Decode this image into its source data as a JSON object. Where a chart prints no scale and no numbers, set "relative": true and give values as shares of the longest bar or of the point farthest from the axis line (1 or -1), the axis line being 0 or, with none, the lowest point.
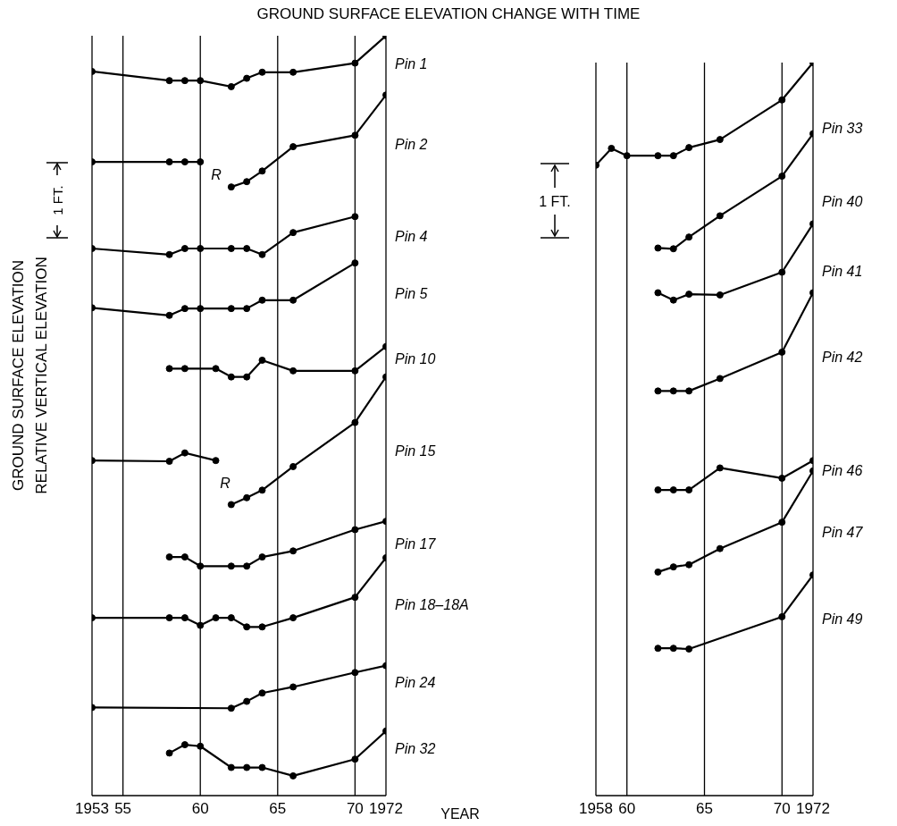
{
  "chart_data": [
    {
      "type": "line",
      "title": "GROUND SURFACE ELEVATION CHANGE WITH TIME",
      "xlabel": "YEAR",
      "ylabel": "GROUND SURFACE ELEVATION\nRELATIVE VERTICAL ELEVATION",
      "relative": true,
      "grid": "x",
      "marker": "circle",
      "line_style": "solid",
      "xlim": [
        1953,
        1972
      ],
      "xticks": [
        {
          "value": 1953,
          "label": "1953"
        },
        {
          "value": 1955,
          "label": "55"
        },
        {
          "value": 1960,
          "label": "60"
        },
        {
          "value": 1965,
          "label": "65"
        },
        {
          "value": 1970,
          "label": "70"
        },
        {
          "value": 1972,
          "label": "1972"
        }
      ],
      "annotations": [
        "1 FT.",
        "R",
        "R"
      ],
      "series": [
        {
          "name": "Pin 1",
          "color": "#000000",
          "x": [
            1953,
            1958,
            1959,
            1960,
            1962,
            1963,
            1964,
            1966,
            1970,
            1972
          ],
          "values": [
            0.953,
            0.941,
            0.941,
            0.941,
            0.933,
            0.944,
            0.952,
            0.952,
            0.964,
            1
          ]
        },
        {
          "color": "#000000",
          "x": [
            1953,
            1958,
            1959,
            1960
          ],
          "values": [
            0.834,
            0.834,
            0.834,
            0.834
          ]
        },
        {
          "name": "Pin 2",
          "color": "#000000",
          "x": [
            1962,
            1963,
            1964,
            1966,
            1970,
            1972
          ],
          "values": [
            0.801,
            0.808,
            0.822,
            0.854,
            0.869,
            0.922
          ]
        },
        {
          "name": "Pin 4",
          "color": "#000000",
          "x": [
            1953,
            1958,
            1959,
            1960,
            1962,
            1963,
            1964,
            1966,
            1970
          ],
          "values": [
            0.72,
            0.712,
            0.72,
            0.72,
            0.72,
            0.72,
            0.712,
            0.741,
            0.762
          ]
        },
        {
          "name": "Pin 5",
          "color": "#000000",
          "x": [
            1953,
            1958,
            1959,
            1960,
            1962,
            1963,
            1964,
            1966,
            1970
          ],
          "values": [
            0.642,
            0.632,
            0.641,
            0.641,
            0.641,
            0.641,
            0.652,
            0.652,
            0.701
          ]
        },
        {
          "name": "Pin 10",
          "color": "#000000",
          "x": [
            1958,
            1959,
            1961,
            1962,
            1963,
            1964,
            1966,
            1970,
            1972
          ],
          "values": [
            0.562,
            0.562,
            0.562,
            0.551,
            0.551,
            0.573,
            0.559,
            0.559,
            0.591
          ]
        },
        {
          "color": "#000000",
          "x": [
            1953,
            1958,
            1959,
            1961
          ],
          "values": [
            0.441,
            0.44,
            0.451,
            0.441
          ]
        },
        {
          "name": "Pin 15",
          "color": "#000000",
          "x": [
            1962,
            1963,
            1964,
            1966,
            1970,
            1972
          ],
          "values": [
            0.383,
            0.392,
            0.402,
            0.433,
            0.491,
            0.551
          ]
        },
        {
          "name": "Pin 17",
          "color": "#000000",
          "x": [
            1958,
            1959,
            1960,
            1962,
            1963,
            1964,
            1966,
            1970,
            1972
          ],
          "values": [
            0.314,
            0.314,
            0.302,
            0.302,
            0.302,
            0.314,
            0.322,
            0.35,
            0.361
          ]
        },
        {
          "name": "Pin 18–18A",
          "color": "#000000",
          "x": [
            1953,
            1958,
            1959,
            1960,
            1961,
            1962,
            1963,
            1964,
            1966,
            1970,
            1972
          ],
          "values": [
            0.234,
            0.234,
            0.234,
            0.224,
            0.234,
            0.234,
            0.222,
            0.222,
            0.234,
            0.261,
            0.313
          ]
        },
        {
          "name": "Pin 24",
          "color": "#000000",
          "x": [
            1953,
            1962,
            1963,
            1964,
            1966,
            1970,
            1972
          ],
          "values": [
            0.116,
            0.115,
            0.124,
            0.135,
            0.143,
            0.162,
            0.171
          ]
        },
        {
          "name": "Pin 32",
          "color": "#000000",
          "x": [
            1958,
            1959,
            1960,
            1962,
            1963,
            1964,
            1966,
            1970,
            1972
          ],
          "values": [
            0.056,
            0.067,
            0.065,
            0.037,
            0.037,
            0.037,
            0.026,
            0.048,
            0.085
          ]
        }
      ]
    },
    {
      "type": "line",
      "relative": true,
      "grid": "x",
      "marker": "circle",
      "line_style": "solid",
      "xlim": [
        1958,
        1972
      ],
      "xticks": [
        {
          "value": 1958,
          "label": "1958"
        },
        {
          "value": 1960,
          "label": "60"
        },
        {
          "value": 1965,
          "label": "65"
        },
        {
          "value": 1970,
          "label": "70"
        },
        {
          "value": 1972,
          "label": "1972"
        }
      ],
      "annotations": [
        "1 FT."
      ],
      "series": [
        {
          "name": "Pin 33",
          "color": "#000000",
          "x": [
            1958,
            1959,
            1960,
            1962,
            1963,
            1964,
            1966,
            1970,
            1972
          ],
          "values": [
            0.86,
            0.883,
            0.873,
            0.873,
            0.873,
            0.884,
            0.895,
            0.949,
            1
          ]
        },
        {
          "name": "Pin 40",
          "color": "#000000",
          "x": [
            1962,
            1963,
            1964,
            1966,
            1970,
            1972
          ],
          "values": [
            0.747,
            0.746,
            0.762,
            0.791,
            0.845,
            0.903
          ]
        },
        {
          "name": "Pin 41",
          "color": "#000000",
          "x": [
            1962,
            1963,
            1964,
            1966,
            1970,
            1972
          ],
          "values": [
            0.686,
            0.676,
            0.684,
            0.683,
            0.714,
            0.78
          ]
        },
        {
          "name": "Pin 42",
          "color": "#000000",
          "x": [
            1962,
            1963,
            1964,
            1966,
            1970,
            1972
          ],
          "values": [
            0.552,
            0.552,
            0.552,
            0.569,
            0.605,
            0.686
          ]
        },
        {
          "name": "Pin 46",
          "color": "#000000",
          "x": [
            1962,
            1963,
            1964,
            1966,
            1970,
            1972
          ],
          "values": [
            0.417,
            0.417,
            0.417,
            0.447,
            0.433,
            0.457
          ]
        },
        {
          "name": "Pin 47",
          "color": "#000000",
          "x": [
            1962,
            1963,
            1964,
            1966,
            1970,
            1972
          ],
          "values": [
            0.305,
            0.312,
            0.315,
            0.337,
            0.373,
            0.443
          ]
        },
        {
          "name": "Pin 49",
          "color": "#000000",
          "x": [
            1962,
            1963,
            1964,
            1970,
            1972
          ],
          "values": [
            0.201,
            0.201,
            0.2,
            0.244,
            0.301
          ]
        }
      ]
    }
  ]
}
